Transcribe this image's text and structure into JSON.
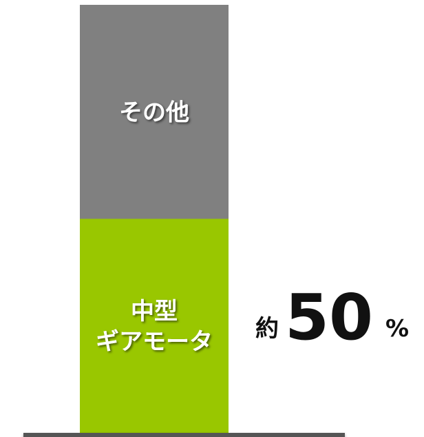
{
  "chart_data": {
    "type": "bar",
    "stacked": true,
    "series": [
      {
        "name": "中型\nギアモータ",
        "value": 50,
        "color": "#99c700"
      },
      {
        "name": "その他",
        "value": 50,
        "color": "#808080"
      }
    ],
    "ylim": [
      0,
      100
    ],
    "callout": {
      "prefix": "約",
      "number": "50",
      "unit": "%"
    }
  }
}
